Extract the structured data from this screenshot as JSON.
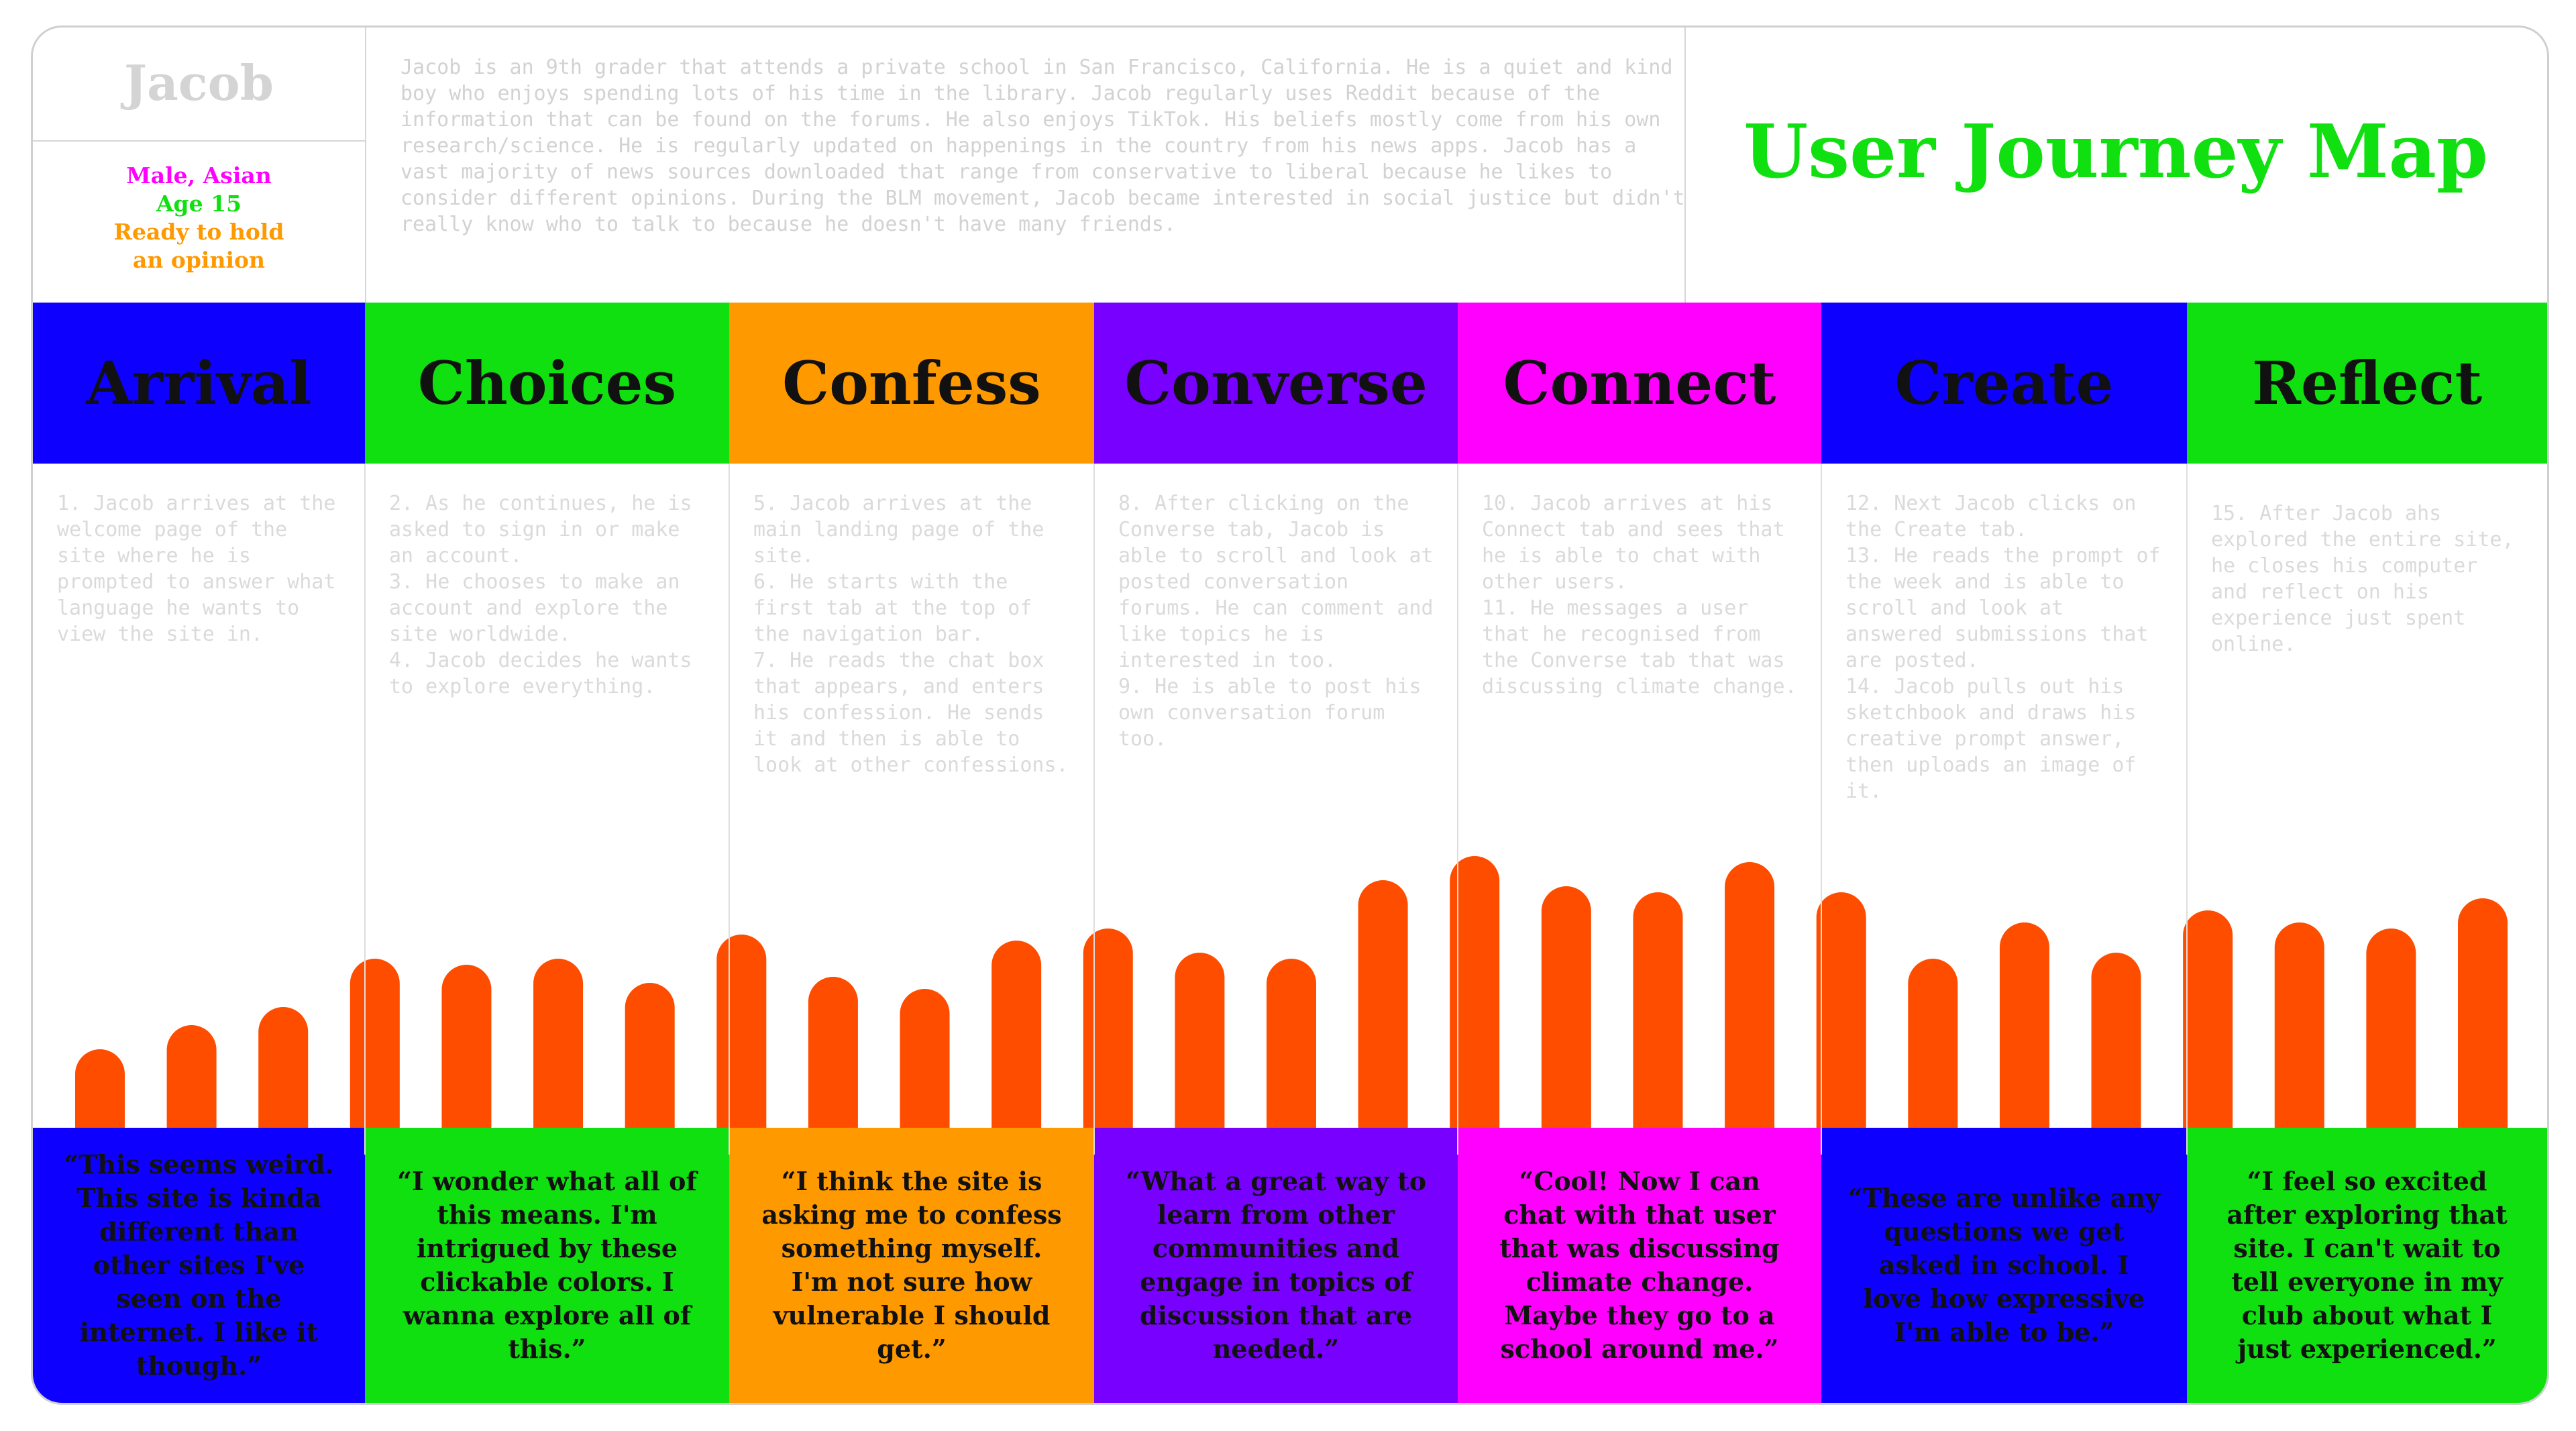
{
  "persona": {
    "name": "Jacob",
    "lines": [
      {
        "text": "Male, Asian",
        "color": "#ff00ff"
      },
      {
        "text": "Age 15",
        "color": "#10e010"
      },
      {
        "text": "Ready to hold",
        "color": "#ff9900"
      },
      {
        "text": "an opinion",
        "color": "#ff9900"
      }
    ],
    "bio": "Jacob is an 9th grader that attends a private school in San Francisco, California. He is a quiet and kind boy who enjoys spending lots of his time in the library. Jacob regularly uses Reddit because of the information that can be found on the forums. He also enjoys TikTok. His beliefs mostly come from his own research/science. He is regularly updated on happenings in the country from his news apps. Jacob has a vast majority of news sources downloaded that range from conservative to liberal because he likes to consider different opinions. During the BLM movement, Jacob became interested in social justice but didn't really know who to talk to because he doesn't have many friends."
  },
  "title": "User Journey Map",
  "stages": [
    {
      "name": "Arrival",
      "color": "#0d00ff",
      "description": "1. Jacob arrives at the welcome page of the site where he is prompted to answer what language he wants to view the site in.",
      "quote": "“This seems weird. This site is kinda different than other sites I've seen on the internet. I like it though.”"
    },
    {
      "name": "Choices",
      "color": "#10e010",
      "description": "2. As he continues, he is asked to sign in or make an account.\n3. He chooses to make an account and explore the site worldwide.\n4. Jacob decides he wants to explore everything.",
      "quote": "“I wonder what all of this means. I'm intrigued by these clickable colors. I wanna explore all of this.”"
    },
    {
      "name": "Confess",
      "color": "#ff9900",
      "description": "5. Jacob arrives at the main landing page of the site.\n6. He starts with the first tab at the top of the navigation bar.\n7. He reads the chat box that appears, and enters his confession. He sends it and then is able to look at other confessions.",
      "quote": "“I think the site is asking me to confess something myself. I'm not sure how vulnerable I should get.”"
    },
    {
      "name": "Converse",
      "color": "#7700ff",
      "description": "8. After clicking on the Converse tab, Jacob is able to scroll and look at posted conversation forums. He can comment and like topics he is interested in too.\n9. He is able to post his own conversation forum too.",
      "quote": "“What a great way to learn from other communities and engage in topics of discussion that are needed.”"
    },
    {
      "name": "Connect",
      "color": "#ff00ff",
      "description": "10. Jacob arrives at his Connect tab and sees that he is able to chat with other users.\n11. He messages a user that he recognised from the Converse tab that was discussing climate change.",
      "quote": "“Cool! Now I can chat with that user that was discussing climate change. Maybe they go to a school around me.”"
    },
    {
      "name": "Create",
      "color": "#0d00ff",
      "description": "12. Next Jacob clicks on the Create tab.\n13. He reads the prompt of the week and is able to scroll and look at answered submissions that are posted.\n14. Jacob pulls out his sketchbook and draws his creative prompt answer, then uploads an image of it.",
      "quote": "“These are unlike any questions we get asked in school. I love how expressive I'm able to be.”"
    },
    {
      "name": "Reflect",
      "color": "#10e010",
      "description": "15. After Jacob ahs explored the entire site, he closes his computer and reflect on his experience just spent online.",
      "quote": "“I feel so excited after exploring that site. I can't wait to tell everyone in my club about what I just experienced.”"
    }
  ],
  "chart_data": {
    "type": "bar",
    "bar_color": "#ff4d00",
    "values": [
      13,
      17,
      20,
      28,
      27,
      28,
      24,
      32,
      25,
      23,
      31,
      33,
      29,
      28,
      41,
      45,
      40,
      39,
      44,
      39,
      28,
      34,
      29,
      36,
      34,
      33,
      38
    ]
  }
}
